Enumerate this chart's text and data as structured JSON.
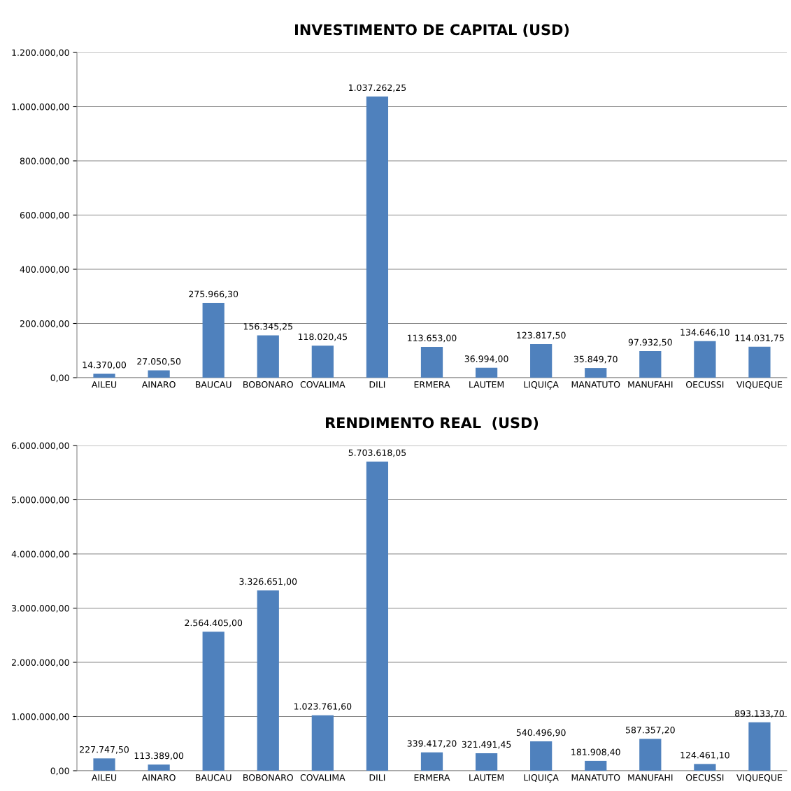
{
  "chart_data": [
    {
      "type": "bar",
      "title": "INVESTIMENTO DE CAPITAL (USD)",
      "categories": [
        "AILEU",
        "AINARO",
        "BAUCAU",
        "BOBONARO",
        "COVALIMA",
        "DILI",
        "ERMERA",
        "LAUTEM",
        "LIQUIÇA",
        "MANATUTO",
        "MANUFAHI",
        "OECUSSI",
        "VIQUEQUE"
      ],
      "values": [
        14370.0,
        27050.5,
        275966.3,
        156345.25,
        118020.45,
        1037262.25,
        113653.0,
        36994.0,
        123817.5,
        35849.7,
        97932.5,
        134646.1,
        114031.75
      ],
      "value_labels": [
        "14.370,00",
        "27.050,50",
        "275.966,30",
        "156.345,25",
        "118.020,45",
        "1.037.262,25",
        "113.653,00",
        "36.994,00",
        "123.817,50",
        "35.849,70",
        "97.932,50",
        "134.646,10",
        "114.031,75"
      ],
      "color": "#4f81bd",
      "ylim": [
        0,
        1200000
      ],
      "yticks": [
        {
          "value": 0,
          "label": "0,00"
        },
        {
          "value": 200000,
          "label": "200.000,00"
        },
        {
          "value": 400000,
          "label": "400.000,00"
        },
        {
          "value": 600000,
          "label": "600.000,00"
        },
        {
          "value": 800000,
          "label": "800.000,00"
        },
        {
          "value": 1000000,
          "label": "1.000.000,00"
        },
        {
          "value": 1200000,
          "label": "1.200.000,00"
        }
      ],
      "grid": "y",
      "legend": false
    },
    {
      "type": "bar",
      "title": "RENDIMENTO REAL  (USD)",
      "categories": [
        "AILEU",
        "AINARO",
        "BAUCAU",
        "BOBONARO",
        "COVALIMA",
        "DILI",
        "ERMERA",
        "LAUTEM",
        "LIQUIÇA",
        "MANATUTO",
        "MANUFAHI",
        "OECUSSI",
        "VIQUEQUE"
      ],
      "values": [
        227747.5,
        113389.0,
        2564405.0,
        3326651.0,
        1023761.6,
        5703618.05,
        339417.2,
        321491.45,
        540496.9,
        181908.4,
        587357.2,
        124461.1,
        893133.7
      ],
      "value_labels": [
        "227.747,50",
        "113.389,00",
        "2.564.405,00",
        "3.326.651,00",
        "1.023.761,60",
        "5.703.618,05",
        "339.417,20",
        "321.491,45",
        "540.496,90",
        "181.908,40",
        "587.357,20",
        "124.461,10",
        "893.133,70"
      ],
      "color": "#4f81bd",
      "ylim": [
        0,
        6000000
      ],
      "yticks": [
        {
          "value": 0,
          "label": "0,00"
        },
        {
          "value": 1000000,
          "label": "1.000.000,00"
        },
        {
          "value": 2000000,
          "label": "2.000.000,00"
        },
        {
          "value": 3000000,
          "label": "3.000.000,00"
        },
        {
          "value": 4000000,
          "label": "4.000.000,00"
        },
        {
          "value": 5000000,
          "label": "5.000.000,00"
        },
        {
          "value": 6000000,
          "label": "6.000.000,00"
        }
      ],
      "grid": "y",
      "legend": false
    }
  ]
}
